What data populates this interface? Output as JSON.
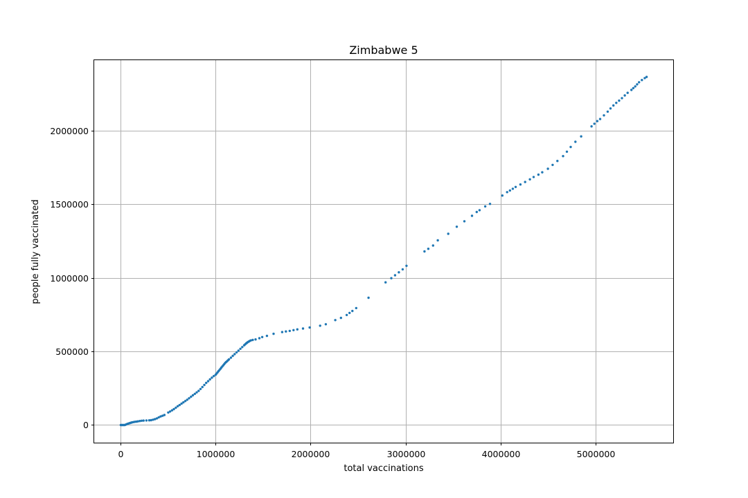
{
  "chart_data": {
    "type": "scatter",
    "title": "Zimbabwe 5",
    "xlabel": "total vaccinations",
    "ylabel": "people fully vaccinated",
    "xlim": [
      -280000,
      5820000
    ],
    "ylim": [
      -120000,
      2480000
    ],
    "x_ticks": [
      0,
      1000000,
      2000000,
      3000000,
      4000000,
      5000000
    ],
    "x_tick_labels": [
      "0",
      "1000000",
      "2000000",
      "3000000",
      "4000000",
      "5000000"
    ],
    "y_ticks": [
      0,
      500000,
      1000000,
      1500000,
      2000000
    ],
    "y_tick_labels": [
      "0",
      "500000",
      "1000000",
      "1500000",
      "2000000"
    ],
    "grid": true,
    "marker_color": "#1f77b4",
    "series": [
      {
        "name": "people fully vaccinated",
        "points": [
          [
            0,
            0
          ],
          [
            10000,
            0
          ],
          [
            20000,
            0
          ],
          [
            30000,
            0
          ],
          [
            40000,
            0
          ],
          [
            50000,
            2000
          ],
          [
            60000,
            5000
          ],
          [
            70000,
            8000
          ],
          [
            80000,
            10000
          ],
          [
            90000,
            12000
          ],
          [
            100000,
            14000
          ],
          [
            110000,
            16000
          ],
          [
            120000,
            18000
          ],
          [
            135000,
            20000
          ],
          [
            150000,
            22000
          ],
          [
            165000,
            23000
          ],
          [
            180000,
            25000
          ],
          [
            200000,
            27000
          ],
          [
            220000,
            29000
          ],
          [
            240000,
            30000
          ],
          [
            270000,
            31000
          ],
          [
            300000,
            32000
          ],
          [
            320000,
            33000
          ],
          [
            340000,
            36000
          ],
          [
            360000,
            40000
          ],
          [
            380000,
            45000
          ],
          [
            400000,
            52000
          ],
          [
            420000,
            58000
          ],
          [
            440000,
            63000
          ],
          [
            460000,
            68000
          ],
          [
            500000,
            85000
          ],
          [
            520000,
            92000
          ],
          [
            540000,
            100000
          ],
          [
            560000,
            108000
          ],
          [
            580000,
            118000
          ],
          [
            600000,
            128000
          ],
          [
            620000,
            136000
          ],
          [
            640000,
            145000
          ],
          [
            660000,
            154000
          ],
          [
            680000,
            163000
          ],
          [
            700000,
            172000
          ],
          [
            720000,
            182000
          ],
          [
            740000,
            192000
          ],
          [
            760000,
            202000
          ],
          [
            780000,
            212000
          ],
          [
            800000,
            222000
          ],
          [
            820000,
            232000
          ],
          [
            840000,
            245000
          ],
          [
            860000,
            258000
          ],
          [
            880000,
            272000
          ],
          [
            900000,
            286000
          ],
          [
            920000,
            298000
          ],
          [
            940000,
            310000
          ],
          [
            960000,
            322000
          ],
          [
            980000,
            333000
          ],
          [
            1000000,
            342000
          ],
          [
            1010000,
            350000
          ],
          [
            1020000,
            358000
          ],
          [
            1030000,
            366000
          ],
          [
            1040000,
            374000
          ],
          [
            1050000,
            382000
          ],
          [
            1060000,
            390000
          ],
          [
            1070000,
            398000
          ],
          [
            1080000,
            406000
          ],
          [
            1090000,
            414000
          ],
          [
            1100000,
            422000
          ],
          [
            1110000,
            428000
          ],
          [
            1120000,
            434000
          ],
          [
            1130000,
            440000
          ],
          [
            1140000,
            446000
          ],
          [
            1160000,
            458000
          ],
          [
            1180000,
            470000
          ],
          [
            1200000,
            482000
          ],
          [
            1220000,
            494000
          ],
          [
            1240000,
            506000
          ],
          [
            1260000,
            518000
          ],
          [
            1280000,
            530000
          ],
          [
            1300000,
            542000
          ],
          [
            1310000,
            548000
          ],
          [
            1320000,
            554000
          ],
          [
            1330000,
            559000
          ],
          [
            1340000,
            564000
          ],
          [
            1350000,
            568000
          ],
          [
            1360000,
            572000
          ],
          [
            1370000,
            575000
          ],
          [
            1390000,
            578000
          ],
          [
            1420000,
            582000
          ],
          [
            1460000,
            590000
          ],
          [
            1490000,
            598000
          ],
          [
            1540000,
            606000
          ],
          [
            1610000,
            620000
          ],
          [
            1700000,
            632000
          ],
          [
            1740000,
            636000
          ],
          [
            1780000,
            640000
          ],
          [
            1820000,
            645000
          ],
          [
            1860000,
            650000
          ],
          [
            1920000,
            656000
          ],
          [
            1990000,
            663000
          ],
          [
            2100000,
            675000
          ],
          [
            2160000,
            685000
          ],
          [
            2260000,
            713000
          ],
          [
            2320000,
            728000
          ],
          [
            2380000,
            748000
          ],
          [
            2410000,
            762000
          ],
          [
            2440000,
            775000
          ],
          [
            2480000,
            795000
          ],
          [
            2610000,
            865000
          ],
          [
            2790000,
            970000
          ],
          [
            2850000,
            998000
          ],
          [
            2890000,
            1018000
          ],
          [
            2930000,
            1038000
          ],
          [
            2970000,
            1058000
          ],
          [
            3010000,
            1082000
          ],
          [
            3200000,
            1180000
          ],
          [
            3240000,
            1198000
          ],
          [
            3290000,
            1220000
          ],
          [
            3340000,
            1255000
          ],
          [
            3450000,
            1300000
          ],
          [
            3540000,
            1348000
          ],
          [
            3620000,
            1385000
          ],
          [
            3700000,
            1422000
          ],
          [
            3750000,
            1448000
          ],
          [
            3780000,
            1460000
          ],
          [
            3840000,
            1486000
          ],
          [
            3890000,
            1503000
          ],
          [
            4020000,
            1560000
          ],
          [
            4070000,
            1583000
          ],
          [
            4100000,
            1594000
          ],
          [
            4130000,
            1606000
          ],
          [
            4160000,
            1618000
          ],
          [
            4210000,
            1635000
          ],
          [
            4260000,
            1652000
          ],
          [
            4310000,
            1670000
          ],
          [
            4350000,
            1686000
          ],
          [
            4400000,
            1702000
          ],
          [
            4440000,
            1718000
          ],
          [
            4500000,
            1742000
          ],
          [
            4550000,
            1768000
          ],
          [
            4600000,
            1795000
          ],
          [
            4660000,
            1828000
          ],
          [
            4700000,
            1858000
          ],
          [
            4740000,
            1890000
          ],
          [
            4790000,
            1925000
          ],
          [
            4850000,
            1962000
          ],
          [
            4960000,
            2030000
          ],
          [
            4990000,
            2048000
          ],
          [
            5020000,
            2066000
          ],
          [
            5050000,
            2080000
          ],
          [
            5090000,
            2105000
          ],
          [
            5130000,
            2130000
          ],
          [
            5160000,
            2152000
          ],
          [
            5190000,
            2172000
          ],
          [
            5220000,
            2190000
          ],
          [
            5250000,
            2205000
          ],
          [
            5280000,
            2222000
          ],
          [
            5310000,
            2240000
          ],
          [
            5340000,
            2258000
          ],
          [
            5380000,
            2278000
          ],
          [
            5400000,
            2290000
          ],
          [
            5420000,
            2302000
          ],
          [
            5440000,
            2316000
          ],
          [
            5460000,
            2330000
          ],
          [
            5490000,
            2345000
          ],
          [
            5520000,
            2358000
          ],
          [
            5540000,
            2366000
          ]
        ]
      }
    ]
  }
}
